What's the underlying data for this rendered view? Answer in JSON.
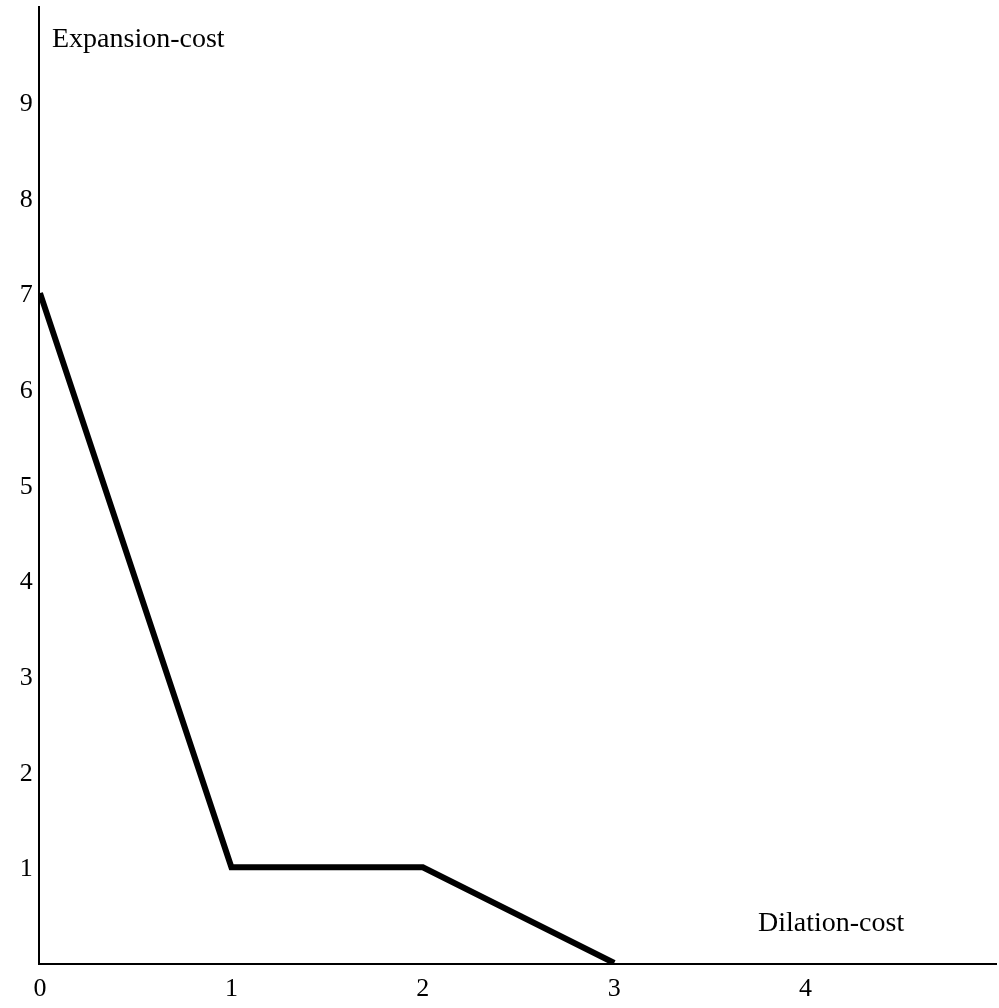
{
  "chart_data": {
    "type": "line",
    "xlabel": "Dilation-cost",
    "ylabel": "Expansion-cost",
    "x": [
      0,
      1,
      2,
      3
    ],
    "series": [
      {
        "color": "#000000",
        "values": [
          7,
          1,
          1,
          0
        ]
      }
    ],
    "xlim": [
      0,
      5
    ],
    "xticks": [
      0,
      1,
      2,
      3,
      4
    ],
    "ylim": [
      0,
      10
    ],
    "yticks": [
      1,
      2,
      3,
      4,
      5,
      6,
      7,
      8,
      9
    ],
    "marker": "none",
    "line_style": "solid"
  }
}
